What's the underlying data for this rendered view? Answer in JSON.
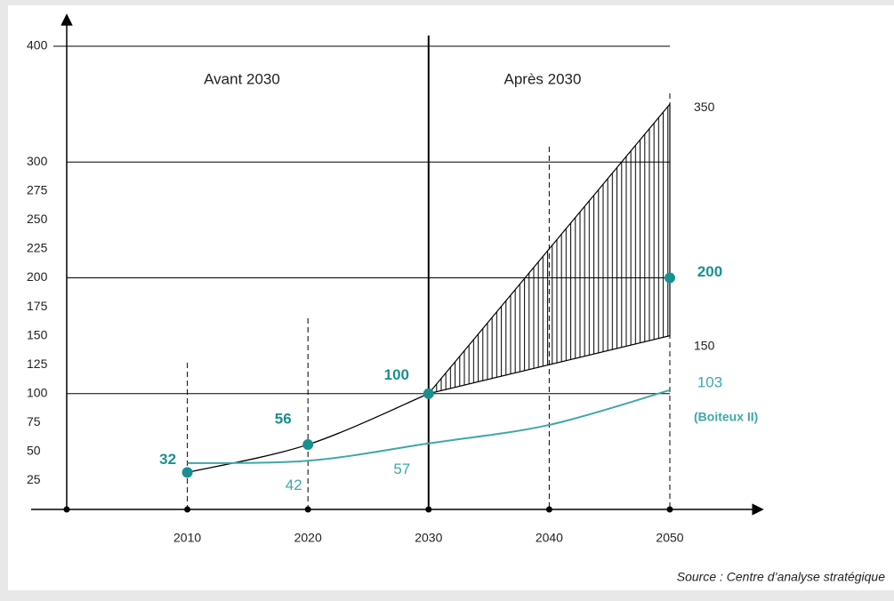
{
  "chart_data": {
    "type": "line",
    "xlim": [
      2000,
      2057
    ],
    "xticks": [
      2010,
      2020,
      2030,
      2040,
      2050
    ],
    "ylim": [
      0,
      400
    ],
    "yticks": [
      25,
      50,
      75,
      100,
      125,
      150,
      175,
      200,
      225,
      250,
      275,
      300,
      400
    ],
    "hgrid": [
      100,
      200,
      300,
      400
    ],
    "regions": [
      "Avant 2030",
      "Après 2030"
    ],
    "series": [
      {
        "color": "#000000",
        "x": [
          2010,
          2020,
          2030
        ],
        "values": [
          32,
          56,
          100
        ],
        "markers": true
      },
      {
        "color": "#3fa7a8",
        "x": [
          2010,
          2020,
          2030,
          2040,
          2050
        ],
        "values": [
          40,
          42,
          57,
          73,
          103
        ],
        "markers": false
      }
    ],
    "band": {
      "x": [
        2030,
        2050
      ],
      "low": [
        100,
        150
      ],
      "high": [
        100,
        350
      ],
      "color": "#000000"
    },
    "point": {
      "x": 2050,
      "value": 200,
      "color": "#1a8f92"
    },
    "annotation": "(Boiteux II)",
    "source": "Source : Centre d’analyse stratégique"
  }
}
